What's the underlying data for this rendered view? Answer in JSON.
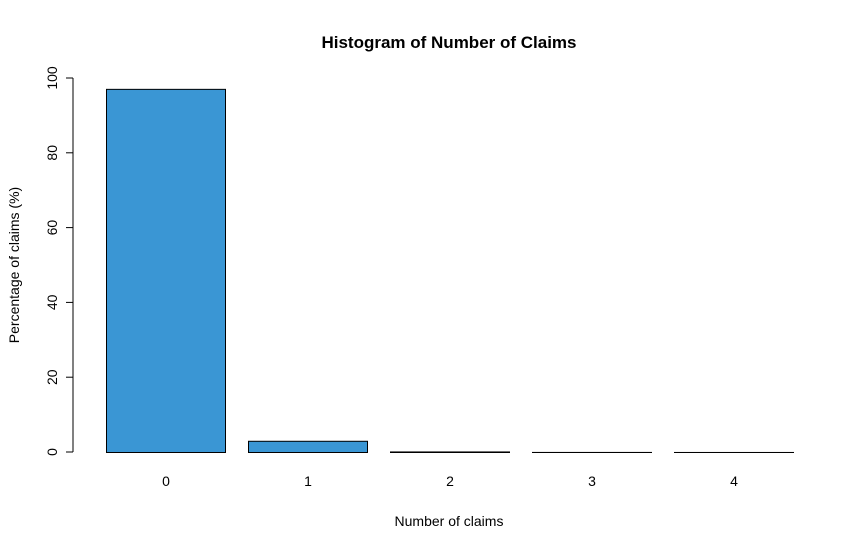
{
  "chart_data": {
    "type": "bar",
    "title": "Histogram of Number of Claims",
    "xlabel": "Number of claims",
    "ylabel": "Percentage of claims (%)",
    "categories": [
      "0",
      "1",
      "2",
      "3",
      "4"
    ],
    "values": [
      97.1,
      3.0,
      0.15,
      0.02,
      0.01
    ],
    "ylim": [
      0,
      100
    ],
    "yticks": [
      0,
      20,
      40,
      60,
      80,
      100
    ],
    "bar_color": "#3A96D4",
    "bar_border_color": "#000000",
    "grid": false,
    "legend": "none"
  }
}
